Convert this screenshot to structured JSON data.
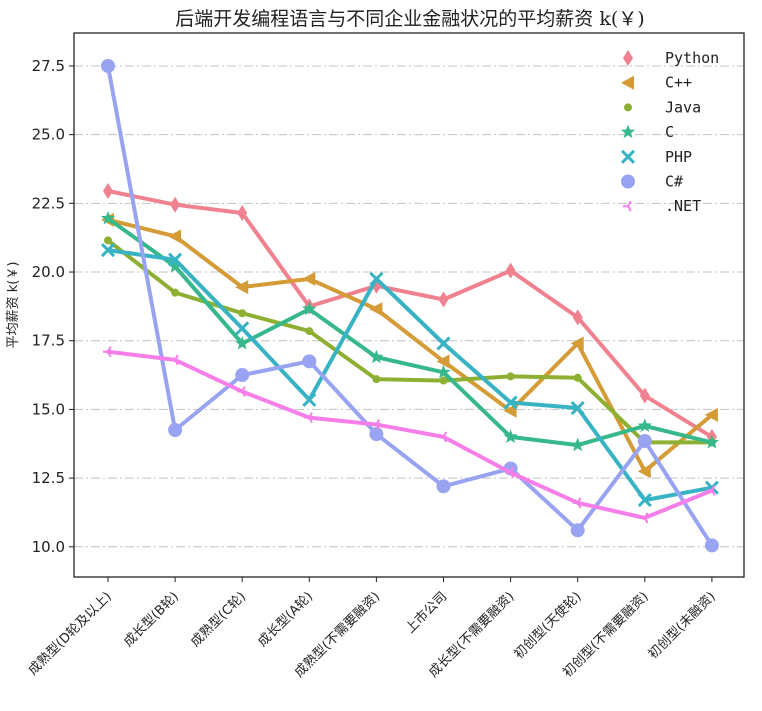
{
  "chart_data": {
    "type": "line",
    "title": "后端开发编程语言与不同企业金融状况的平均薪资 k(￥)",
    "xlabel": "",
    "ylabel": "平均薪资 k(￥)",
    "ylim": [
      8.9,
      28.7
    ],
    "yticks": [
      10.0,
      12.5,
      15.0,
      17.5,
      20.0,
      22.5,
      25.0,
      27.5
    ],
    "ytick_labels": [
      "10.0",
      "12.5",
      "15.0",
      "17.5",
      "20.0",
      "22.5",
      "25.0",
      "27.5"
    ],
    "grid": "horizontal dash-dot",
    "legend_position": "top-right",
    "categories": [
      "成熟型(D轮及以上)",
      "成长型(B轮)",
      "成熟型(C轮)",
      "成长型(A轮)",
      "成熟型(不需要融资)",
      "上市公司",
      "成长型(不需要融资)",
      "初创型(天使轮)",
      "初创型(不需要融资)",
      "初创型(未融资)"
    ],
    "series": [
      {
        "name": "Python",
        "color": "#f0828f",
        "marker": "thin-diamond",
        "values": [
          22.95,
          22.45,
          22.15,
          18.75,
          19.5,
          19.0,
          20.05,
          18.35,
          15.5,
          14.0
        ]
      },
      {
        "name": "C++",
        "color": "#d49b36",
        "marker": "triangle-left",
        "values": [
          21.9,
          21.3,
          19.45,
          19.75,
          18.65,
          16.75,
          14.95,
          17.4,
          12.75,
          14.8
        ]
      },
      {
        "name": "Java",
        "color": "#8db032",
        "marker": "circle-small",
        "values": [
          21.15,
          19.25,
          18.5,
          17.85,
          16.1,
          16.05,
          16.2,
          16.15,
          13.8,
          13.8
        ]
      },
      {
        "name": "C",
        "color": "#36b88b",
        "marker": "star",
        "values": [
          21.95,
          20.2,
          17.4,
          18.65,
          16.9,
          16.35,
          14.0,
          13.7,
          14.4,
          13.8
        ]
      },
      {
        "name": "PHP",
        "color": "#38b3c4",
        "marker": "x",
        "values": [
          20.8,
          20.45,
          17.95,
          15.35,
          19.75,
          17.4,
          15.25,
          15.05,
          11.7,
          12.15
        ]
      },
      {
        "name": "C#",
        "color": "#98a4f2",
        "marker": "circle-large",
        "values": [
          27.5,
          14.25,
          16.25,
          16.75,
          14.1,
          12.2,
          12.85,
          10.6,
          13.85,
          10.05
        ]
      },
      {
        "name": ".NET",
        "color": "#f57ee9",
        "marker": "tri-left",
        "values": [
          17.1,
          16.8,
          15.65,
          14.7,
          14.45,
          14.0,
          12.7,
          11.6,
          11.05,
          12.05
        ]
      }
    ]
  }
}
